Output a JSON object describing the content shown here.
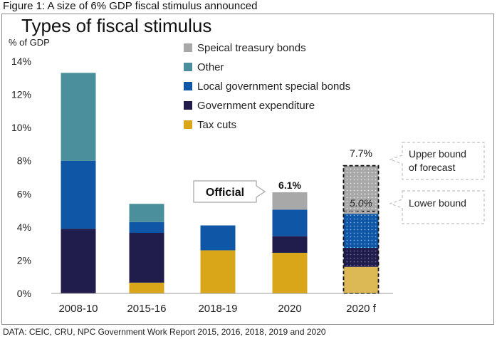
{
  "figure_title": "Figure 1: A size of 6% GDP fiscal stimulus announced",
  "source": "DATA: CEIC, CRU, NPC Government Work Report 2015, 2016, 2018, 2019 and 2020",
  "colors": {
    "tax_cuts": "#d9a61a",
    "government_expenditure": "#201c4c",
    "local_government_special_bonds": "#0f56a6",
    "other": "#4a8f9b",
    "speical_treasury_bonds": "#a8a8a8",
    "forecast_tax_cuts": "#ddb955",
    "forecast_outline": "#111111",
    "callout_border": "#b5b5b5"
  },
  "chart_data": {
    "type": "bar",
    "stacked": true,
    "title": "Types of fiscal stimulus",
    "ylabel": "% of GDP",
    "ylim": [
      0,
      14
    ],
    "yticks": [
      "0%",
      "2%",
      "4%",
      "6%",
      "8%",
      "10%",
      "12%",
      "14%"
    ],
    "grid": false,
    "legend_position": "top-right",
    "categories": [
      "2008-10",
      "2015-16",
      "2018-19",
      "2020",
      "2020 f"
    ],
    "series": [
      {
        "name": "Tax cuts",
        "key": "tax_cuts",
        "values": [
          0,
          0.65,
          2.6,
          2.45,
          1.6
        ]
      },
      {
        "name": "Government expenditure",
        "key": "government_expenditure",
        "values": [
          3.9,
          3.0,
          0,
          1.0,
          1.15
        ]
      },
      {
        "name": "Local government special bonds",
        "key": "local_government_special_bonds",
        "values": [
          4.1,
          0.65,
          1.5,
          1.6,
          2.05
        ]
      },
      {
        "name": "Other",
        "key": "other",
        "values": [
          5.3,
          1.1,
          0,
          0,
          0
        ]
      },
      {
        "name": "Speical treasury bonds",
        "key": "speical_treasury_bonds",
        "values": [
          0,
          0,
          0,
          1.05,
          2.9
        ]
      }
    ],
    "legend": [
      {
        "name": "Speical treasury bonds",
        "key": "speical_treasury_bonds"
      },
      {
        "name": "Other",
        "key": "other"
      },
      {
        "name": "Local government special bonds",
        "key": "local_government_special_bonds"
      },
      {
        "name": "Government expenditure",
        "key": "government_expenditure"
      },
      {
        "name": "Tax cuts",
        "key": "tax_cuts"
      }
    ],
    "forecast_category": "2020 f",
    "lower_bound_value": 4.95,
    "annotations": {
      "official_label": "Official",
      "official_value_label": "6.1%",
      "upper_value_label": "7.7%",
      "lower_value_label": "5.0%",
      "upper_bound_label_line1": "Upper bound",
      "upper_bound_label_line2": "of forecast",
      "lower_bound_label": "Lower bound"
    }
  }
}
